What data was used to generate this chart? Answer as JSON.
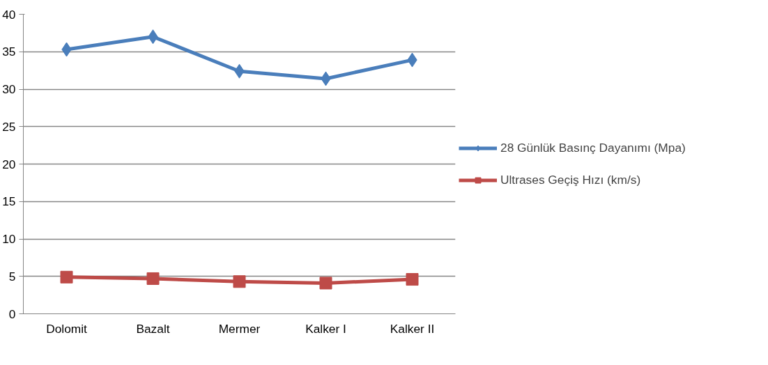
{
  "chart_data": {
    "type": "line",
    "categories": [
      "Dolomit",
      "Bazalt",
      "Mermer",
      "Kalker I",
      "Kalker II"
    ],
    "series": [
      {
        "name": "28 Günlük Basınç Dayanımı (Mpa)",
        "color": "#4a7ebb",
        "marker": "diamond",
        "values": [
          35.3,
          37.0,
          32.4,
          31.4,
          33.9
        ]
      },
      {
        "name": "Ultrases Geçiş Hızı (km/s)",
        "color": "#be4b48",
        "marker": "square",
        "values": [
          4.9,
          4.7,
          4.3,
          4.1,
          4.6
        ]
      }
    ],
    "ylim": [
      0,
      40
    ],
    "yticks": [
      0,
      5,
      10,
      15,
      20,
      25,
      30,
      35,
      40
    ],
    "grid": "y",
    "legend": "right"
  }
}
